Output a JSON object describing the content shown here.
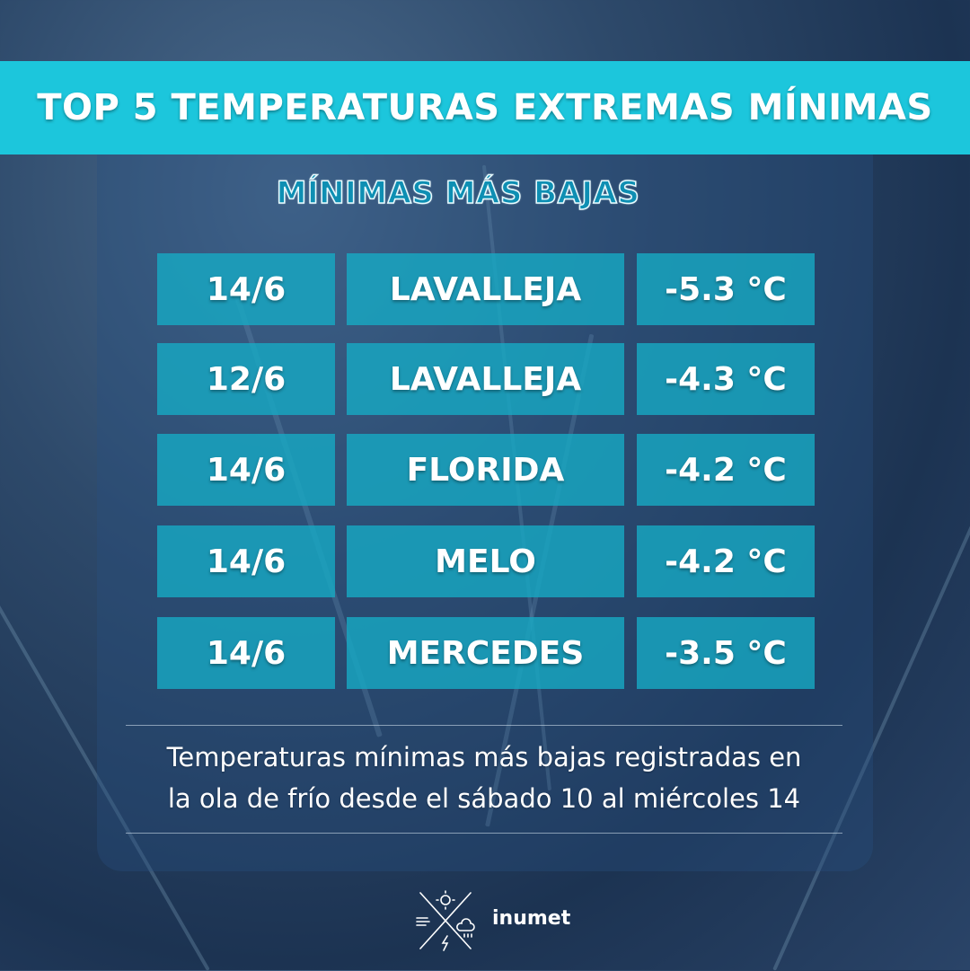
{
  "header": {
    "title": "TOP 5 TEMPERATURAS EXTREMAS MÍNIMAS"
  },
  "panel": {
    "subtitle": "MÍNIMAS MÁS BAJAS"
  },
  "rows": [
    {
      "date": "14/6",
      "location": "LAVALLEJA",
      "temp": "-5.3 °C"
    },
    {
      "date": "12/6",
      "location": "LAVALLEJA",
      "temp": "-4.3 °C"
    },
    {
      "date": "14/6",
      "location": "FLORIDA",
      "temp": "-4.2 °C"
    },
    {
      "date": "14/6",
      "location": "MELO",
      "temp": "-4.2 °C"
    },
    {
      "date": "14/6",
      "location": "MERCEDES",
      "temp": "-3.5 °C"
    }
  ],
  "note": {
    "line1": "Temperaturas mínimas más bajas registradas en",
    "line2": "la ola de frío desde el sábado 10 al miércoles 14"
  },
  "brand": {
    "name": "inumet",
    "icon": "inumet-weather-logo-icon"
  },
  "colors": {
    "banner": "#1cc6dc",
    "cell": "#16aac4",
    "subtitle": "#0e8fb3"
  }
}
